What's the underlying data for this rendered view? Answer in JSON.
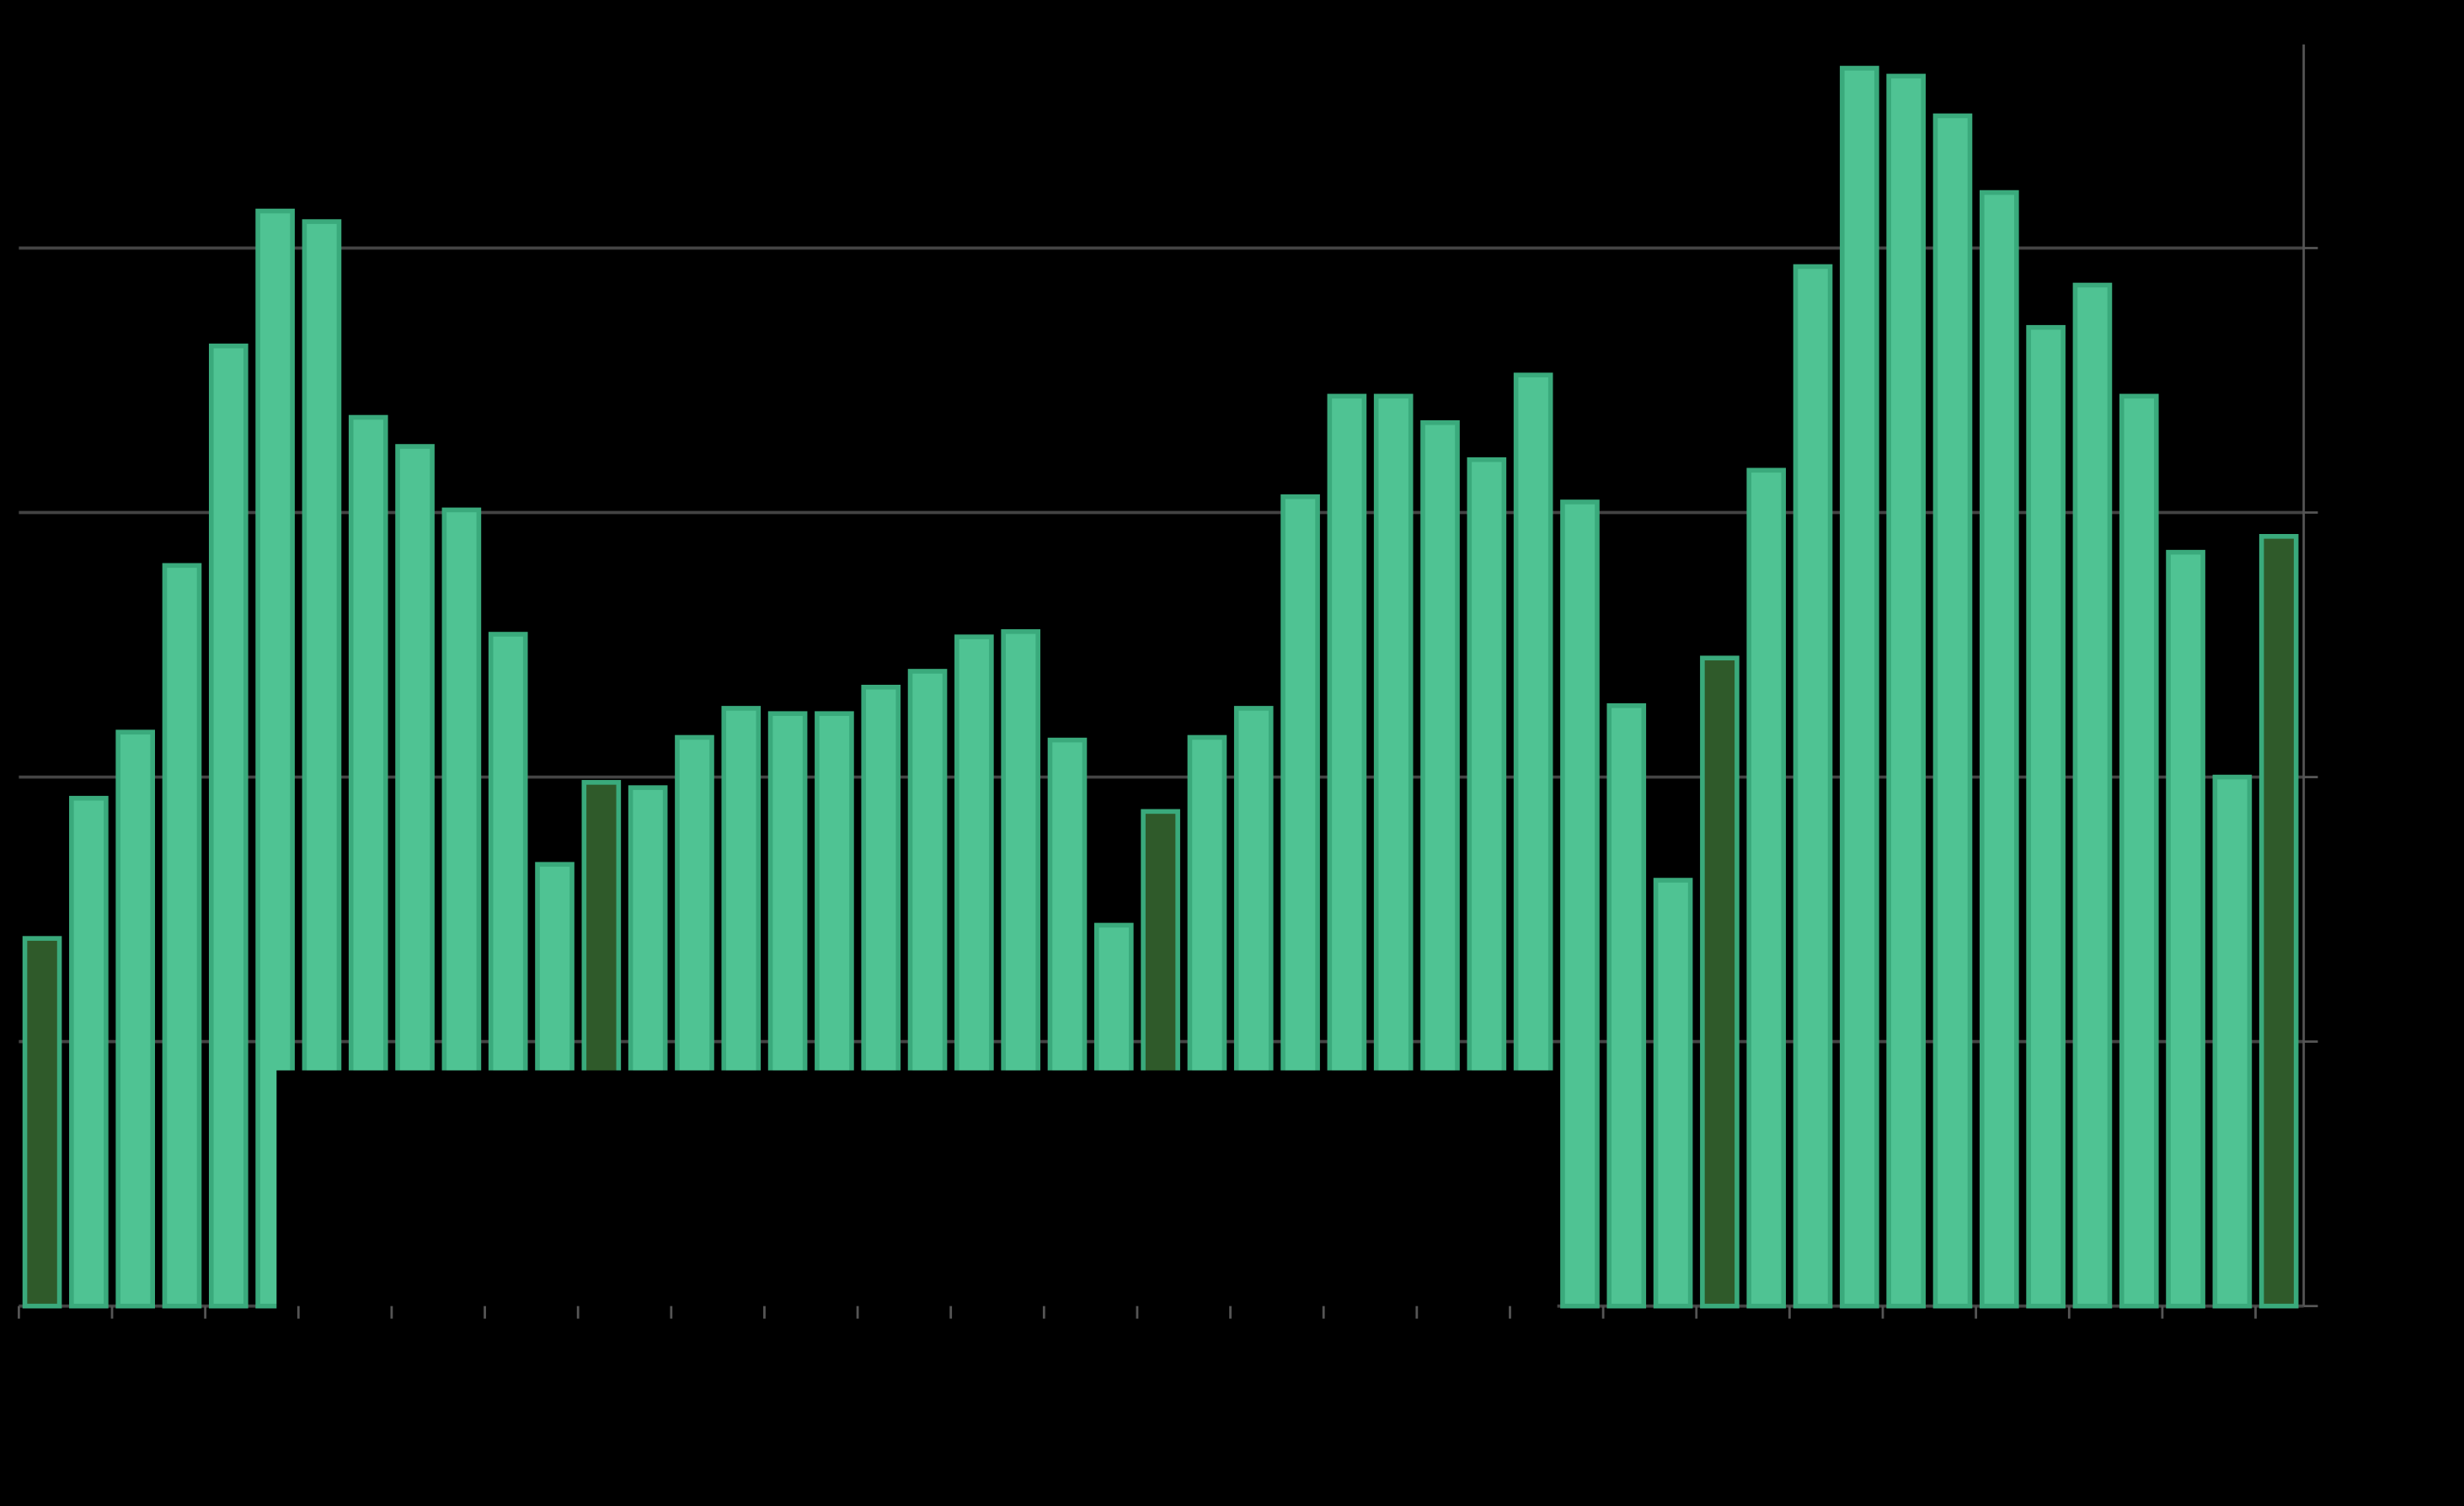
{
  "chart_data": {
    "type": "bar",
    "categories": [
      null,
      null,
      null,
      null,
      null,
      null,
      null,
      null,
      null,
      null,
      null,
      null,
      null,
      null,
      null,
      null,
      null,
      null,
      null,
      null,
      null,
      null,
      null,
      null,
      null,
      null,
      null,
      null,
      null,
      null,
      null,
      null,
      null,
      null,
      null,
      null,
      null,
      null,
      null,
      null,
      null,
      null,
      null,
      null,
      null,
      null,
      null,
      null,
      null
    ],
    "values": [
      1.39,
      1.92,
      2.17,
      2.8,
      3.63,
      4.14,
      4.1,
      3.36,
      3.25,
      3.01,
      2.54,
      1.67,
      1.98,
      1.96,
      2.15,
      2.26,
      2.24,
      2.24,
      2.34,
      2.4,
      2.53,
      2.55,
      2.14,
      1.44,
      1.87,
      2.15,
      2.26,
      3.06,
      3.44,
      3.44,
      3.34,
      3.2,
      3.52,
      3.04,
      2.27,
      1.61,
      2.45,
      3.16,
      3.93,
      4.68,
      4.65,
      4.5,
      4.21,
      3.7,
      3.86,
      3.44,
      2.85,
      2.0,
      2.91
    ],
    "colors": [
      "#2f5a2a",
      "#4fc393",
      "#4fc393",
      "#4fc393",
      "#4fc393",
      "#4fc393",
      "#4fc393",
      "#4fc393",
      "#4fc393",
      "#4fc393",
      "#4fc393",
      "#4fc393",
      "#2f5a2a",
      "#4fc393",
      "#4fc393",
      "#4fc393",
      "#4fc393",
      "#4fc393",
      "#4fc393",
      "#4fc393",
      "#4fc393",
      "#4fc393",
      "#4fc393",
      "#4fc393",
      "#2f5a2a",
      "#4fc393",
      "#4fc393",
      "#4fc393",
      "#4fc393",
      "#4fc393",
      "#4fc393",
      "#4fc393",
      "#4fc393",
      "#4fc393",
      "#4fc393",
      "#4fc393",
      "#2f5a2a",
      "#4fc393",
      "#4fc393",
      "#4fc393",
      "#4fc393",
      "#4fc393",
      "#4fc393",
      "#4fc393",
      "#4fc393",
      "#4fc393",
      "#4fc393",
      "#4fc393",
      "#2f5a2a"
    ],
    "edge_color": "#3aaa7c",
    "ylim": [
      0,
      4.77
    ],
    "yticks": [
      0,
      1,
      2,
      3,
      4
    ],
    "grid": true
  }
}
